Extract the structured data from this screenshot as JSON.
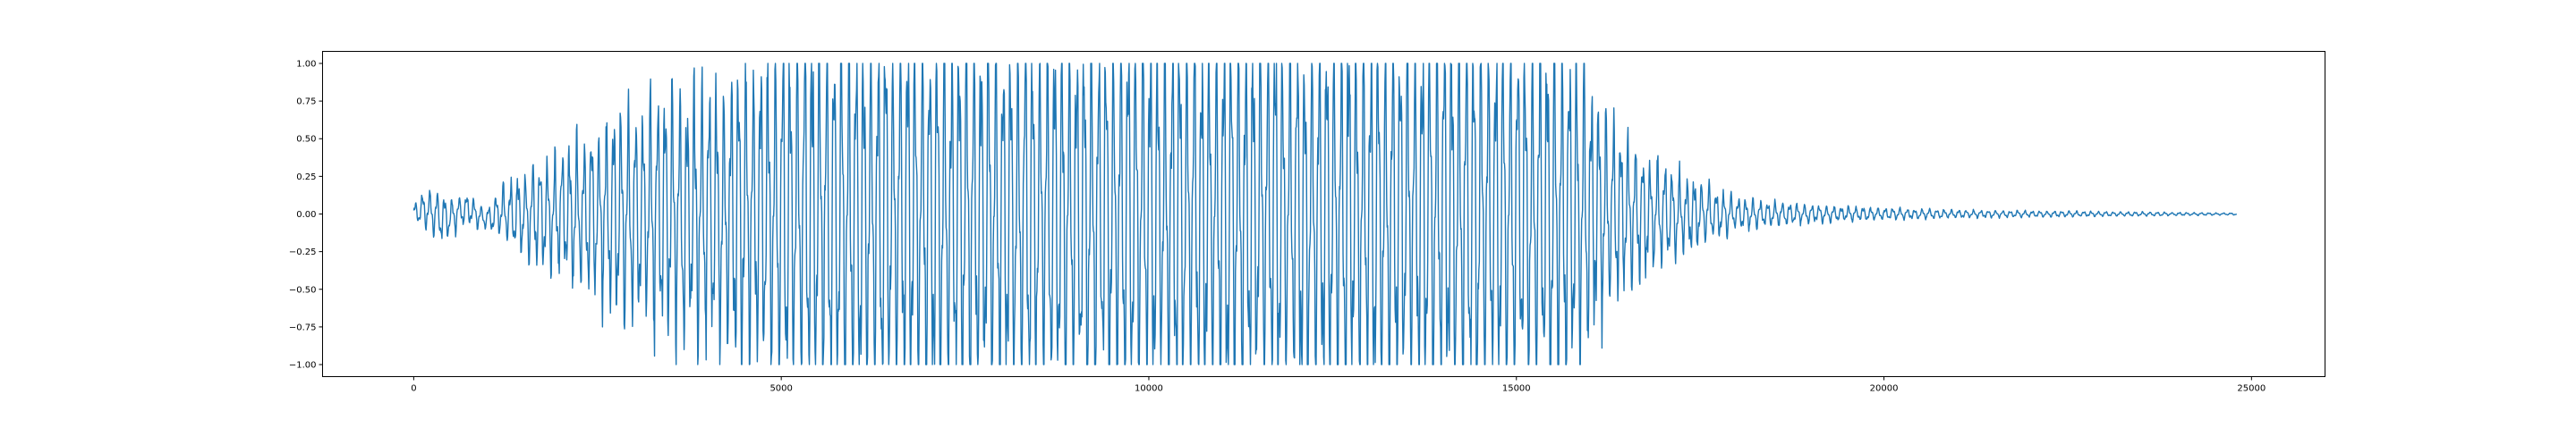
{
  "chart_data": {
    "type": "line",
    "title": "",
    "xlabel": "",
    "ylabel": "",
    "xlim": [
      -1240,
      26000
    ],
    "ylim": [
      -1.08,
      1.08
    ],
    "x_ticks": [
      0,
      5000,
      10000,
      15000,
      20000,
      25000
    ],
    "x_tick_labels": [
      "0",
      "5000",
      "10000",
      "15000",
      "20000",
      "25000"
    ],
    "y_ticks": [
      1.0,
      0.75,
      0.5,
      0.25,
      0.0,
      -0.25,
      -0.5,
      -0.75,
      -1.0
    ],
    "y_tick_labels": [
      "1.00",
      "0.75",
      "0.50",
      "0.25",
      "0.00",
      "−0.25",
      "−0.50",
      "−0.75",
      "−1.00"
    ],
    "grid": false,
    "legend": "none",
    "series": [
      {
        "color": "#1f77b4",
        "x_start": 0,
        "x_end": 24800,
        "num_points": 24800,
        "description": "audio waveform, clipped at ±1.0 between x≈5300 and x≈15600",
        "envelope": [
          [
            0,
            0.05
          ],
          [
            300,
            0.13
          ],
          [
            600,
            0.09
          ],
          [
            1000,
            0.05
          ],
          [
            1300,
            0.18
          ],
          [
            2000,
            0.32
          ],
          [
            2500,
            0.46
          ],
          [
            3000,
            0.57
          ],
          [
            3500,
            0.66
          ],
          [
            4000,
            0.68
          ],
          [
            4500,
            0.8
          ],
          [
            5000,
            0.95
          ],
          [
            5300,
            1.0
          ],
          [
            15500,
            1.0
          ],
          [
            15800,
            0.88
          ],
          [
            16200,
            0.55
          ],
          [
            16700,
            0.33
          ],
          [
            17200,
            0.22
          ],
          [
            18000,
            0.08
          ],
          [
            19000,
            0.045
          ],
          [
            20000,
            0.03
          ],
          [
            21000,
            0.02
          ],
          [
            24800,
            0.005
          ]
        ],
        "clip": [
          -1.0,
          1.0
        ]
      }
    ]
  }
}
